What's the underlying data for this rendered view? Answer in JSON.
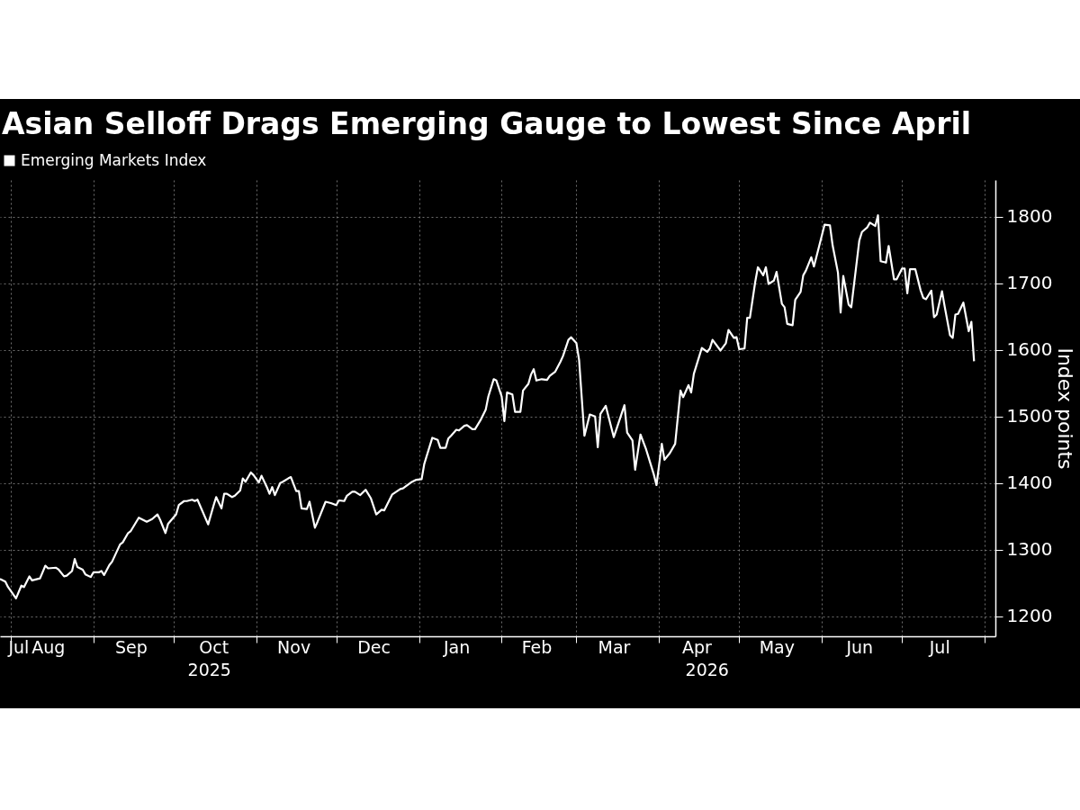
{
  "chart_data": {
    "type": "line",
    "title": "Asian Selloff Drags Emerging Gauge to Lowest Since April",
    "ylabel": "Index points",
    "x": [
      "2025-07-28",
      "2025-07-30",
      "2025-07-31",
      "2025-08-03",
      "2025-08-05",
      "2025-08-06",
      "2025-08-08",
      "2025-08-09",
      "2025-08-12",
      "2025-08-14",
      "2025-08-15",
      "2025-08-18",
      "2025-08-19",
      "2025-08-21",
      "2025-08-22",
      "2025-08-24",
      "2025-08-25",
      "2025-08-26",
      "2025-08-28",
      "2025-08-29",
      "2025-08-31",
      "2025-09-01",
      "2025-09-03",
      "2025-09-04",
      "2025-09-05",
      "2025-09-07",
      "2025-09-08",
      "2025-09-11",
      "2025-09-12",
      "2025-09-14",
      "2025-09-15",
      "2025-09-18",
      "2025-09-21",
      "2025-09-23",
      "2025-09-25",
      "2025-09-26",
      "2025-09-28",
      "2025-09-29",
      "2025-10-02",
      "2025-10-03",
      "2025-10-05",
      "2025-10-06",
      "2025-10-08",
      "2025-10-09",
      "2025-10-10",
      "2025-10-14",
      "2025-10-16",
      "2025-10-17",
      "2025-10-19",
      "2025-10-20",
      "2025-10-21",
      "2025-10-23",
      "2025-10-24",
      "2025-10-26",
      "2025-10-27",
      "2025-10-28",
      "2025-10-30",
      "2025-10-31",
      "2025-11-02",
      "2025-11-03",
      "2025-11-05",
      "2025-11-06",
      "2025-11-07",
      "2025-11-08",
      "2025-11-10",
      "2025-11-11",
      "2025-11-13",
      "2025-11-14",
      "2025-11-16",
      "2025-11-17",
      "2025-11-18",
      "2025-11-20",
      "2025-11-21",
      "2025-11-23",
      "2025-11-24",
      "2025-11-27",
      "2025-11-29",
      "2025-12-01",
      "2025-12-02",
      "2025-12-04",
      "2025-12-05",
      "2025-12-07",
      "2025-12-08",
      "2025-12-10",
      "2025-12-12",
      "2025-12-14",
      "2025-12-16",
      "2025-12-18",
      "2025-12-19",
      "2025-12-22",
      "2025-12-25",
      "2025-12-26",
      "2025-12-29",
      "2025-12-31",
      "2026-01-02",
      "2026-01-03",
      "2026-01-06",
      "2026-01-08",
      "2026-01-09",
      "2026-01-11",
      "2026-01-12",
      "2026-01-13",
      "2026-01-15",
      "2026-01-16",
      "2026-01-18",
      "2026-01-19",
      "2026-01-21",
      "2026-01-22",
      "2026-01-24",
      "2026-01-26",
      "2026-01-27",
      "2026-01-29",
      "2026-01-30",
      "2026-02-01",
      "2026-02-02",
      "2026-02-03",
      "2026-02-05",
      "2026-02-06",
      "2026-02-08",
      "2026-02-09",
      "2026-02-11",
      "2026-02-12",
      "2026-02-13",
      "2026-02-14",
      "2026-02-16",
      "2026-02-18",
      "2026-02-19",
      "2026-02-21",
      "2026-02-23",
      "2026-02-24",
      "2026-02-26",
      "2026-02-27",
      "2026-03-01",
      "2026-03-02",
      "2026-03-04",
      "2026-03-06",
      "2026-03-08",
      "2026-03-09",
      "2026-03-10",
      "2026-03-12",
      "2026-03-15",
      "2026-03-16",
      "2026-03-19",
      "2026-03-20",
      "2026-03-22",
      "2026-03-23",
      "2026-03-25",
      "2026-03-27",
      "2026-03-28",
      "2026-03-30",
      "2026-03-31",
      "2026-04-02",
      "2026-04-03",
      "2026-04-05",
      "2026-04-07",
      "2026-04-09",
      "2026-04-10",
      "2026-04-12",
      "2026-04-13",
      "2026-04-14",
      "2026-04-16",
      "2026-04-17",
      "2026-04-19",
      "2026-04-20",
      "2026-04-21",
      "2026-04-24",
      "2026-04-26",
      "2026-04-27",
      "2026-04-29",
      "2026-04-30",
      "2026-05-01",
      "2026-05-03",
      "2026-05-04",
      "2026-05-05",
      "2026-05-07",
      "2026-05-08",
      "2026-05-10",
      "2026-05-11",
      "2026-05-12",
      "2026-05-14",
      "2026-05-15",
      "2026-05-17",
      "2026-05-18",
      "2026-05-19",
      "2026-05-21",
      "2026-05-22",
      "2026-05-24",
      "2026-05-25",
      "2026-05-26",
      "2026-05-28",
      "2026-05-29",
      "2026-06-02",
      "2026-06-04",
      "2026-06-05",
      "2026-06-07",
      "2026-06-08",
      "2026-06-09",
      "2026-06-11",
      "2026-06-12",
      "2026-06-15",
      "2026-06-16",
      "2026-06-18",
      "2026-06-19",
      "2026-06-21",
      "2026-06-22",
      "2026-06-23",
      "2026-06-25",
      "2026-06-26",
      "2026-06-28",
      "2026-06-29",
      "2026-07-01",
      "2026-07-02",
      "2026-07-03",
      "2026-07-04",
      "2026-07-06",
      "2026-07-08",
      "2026-07-09",
      "2026-07-10",
      "2026-07-12",
      "2026-07-13",
      "2026-07-14",
      "2026-07-16",
      "2026-07-17",
      "2026-07-19",
      "2026-07-20",
      "2026-07-21",
      "2026-07-22",
      "2026-07-24",
      "2026-07-26",
      "2026-07-27",
      "2026-07-28"
    ],
    "series": [
      {
        "name": "Emerging Markets Index",
        "color": "#ffffff",
        "values": [
          1256,
          1252,
          1244,
          1227,
          1246,
          1244,
          1260,
          1254,
          1257,
          1276,
          1272,
          1273,
          1270,
          1260,
          1261,
          1268,
          1286,
          1274,
          1270,
          1263,
          1259,
          1266,
          1266,
          1268,
          1262,
          1277,
          1282,
          1308,
          1311,
          1325,
          1328,
          1348,
          1342,
          1346,
          1353,
          1345,
          1325,
          1339,
          1353,
          1367,
          1373,
          1373,
          1375,
          1373,
          1375,
          1338,
          1366,
          1379,
          1362,
          1384,
          1384,
          1379,
          1381,
          1389,
          1407,
          1402,
          1416,
          1412,
          1401,
          1411,
          1394,
          1384,
          1394,
          1382,
          1400,
          1402,
          1407,
          1409,
          1388,
          1388,
          1362,
          1361,
          1372,
          1333,
          1342,
          1372,
          1370,
          1367,
          1374,
          1373,
          1381,
          1387,
          1387,
          1382,
          1390,
          1377,
          1353,
          1360,
          1359,
          1383,
          1391,
          1392,
          1401,
          1405,
          1406,
          1429,
          1468,
          1465,
          1453,
          1453,
          1467,
          1471,
          1480,
          1479,
          1486,
          1487,
          1481,
          1481,
          1494,
          1510,
          1530,
          1556,
          1554,
          1530,
          1493,
          1536,
          1533,
          1507,
          1507,
          1539,
          1549,
          1563,
          1571,
          1554,
          1556,
          1555,
          1561,
          1567,
          1582,
          1591,
          1615,
          1619,
          1610,
          1585,
          1471,
          1503,
          1500,
          1454,
          1504,
          1516,
          1469,
          1481,
          1517,
          1476,
          1464,
          1420,
          1473,
          1452,
          1439,
          1413,
          1397,
          1459,
          1435,
          1445,
          1459,
          1539,
          1529,
          1547,
          1536,
          1564,
          1590,
          1603,
          1597,
          1602,
          1615,
          1599,
          1610,
          1630,
          1618,
          1619,
          1601,
          1602,
          1648,
          1648,
          1702,
          1724,
          1712,
          1724,
          1699,
          1704,
          1717,
          1669,
          1664,
          1639,
          1637,
          1675,
          1687,
          1712,
          1719,
          1739,
          1725,
          1788,
          1787,
          1757,
          1716,
          1656,
          1711,
          1668,
          1664,
          1764,
          1777,
          1784,
          1791,
          1786,
          1802,
          1733,
          1731,
          1756,
          1706,
          1706,
          1722,
          1722,
          1685,
          1721,
          1721,
          1689,
          1678,
          1676,
          1689,
          1649,
          1653,
          1688,
          1665,
          1622,
          1618,
          1653,
          1654,
          1671,
          1628,
          1642,
          1583
        ]
      }
    ],
    "xlim": [
      "2025-07-28",
      "2026-08-05"
    ],
    "xticks": [
      {
        "value": "2025-07-31",
        "label": "Jul"
      },
      {
        "value": "2025-08-01",
        "label": null
      },
      {
        "value": "2025-08-15",
        "label": "Aug"
      },
      {
        "value": "2025-09-01",
        "label": null
      },
      {
        "value": "2025-09-15",
        "label": "Sep"
      },
      {
        "value": "2025-10-01",
        "label": null
      },
      {
        "value": "2025-10-16",
        "label": "Oct"
      },
      {
        "value": "2025-11-01",
        "label": null
      },
      {
        "value": "2025-11-15",
        "label": "Nov"
      },
      {
        "value": "2025-12-01",
        "label": null
      },
      {
        "value": "2025-12-15",
        "label": "Dec"
      },
      {
        "value": "2026-01-01",
        "label": null
      },
      {
        "value": "2026-01-15",
        "label": "Jan"
      },
      {
        "value": "2026-02-01",
        "label": null
      },
      {
        "value": "2026-02-14",
        "label": "Feb"
      },
      {
        "value": "2026-03-01",
        "label": null
      },
      {
        "value": "2026-03-15",
        "label": "Mar"
      },
      {
        "value": "2026-04-01",
        "label": null
      },
      {
        "value": "2026-04-15",
        "label": "Apr"
      },
      {
        "value": "2026-05-01",
        "label": null
      },
      {
        "value": "2026-05-15",
        "label": "May"
      },
      {
        "value": "2026-06-01",
        "label": null
      },
      {
        "value": "2026-06-15",
        "label": "Jun"
      },
      {
        "value": "2026-07-01",
        "label": null
      },
      {
        "value": "2026-07-15",
        "label": "Jul"
      },
      {
        "value": "2026-08-01",
        "label": null
      }
    ],
    "annotations": [
      "2025",
      "2026"
    ],
    "ylim": [
      1170,
      1855
    ],
    "yticks": [
      1200,
      1300,
      1400,
      1500,
      1600,
      1700,
      1800
    ],
    "grid": true,
    "legend": "top left"
  }
}
